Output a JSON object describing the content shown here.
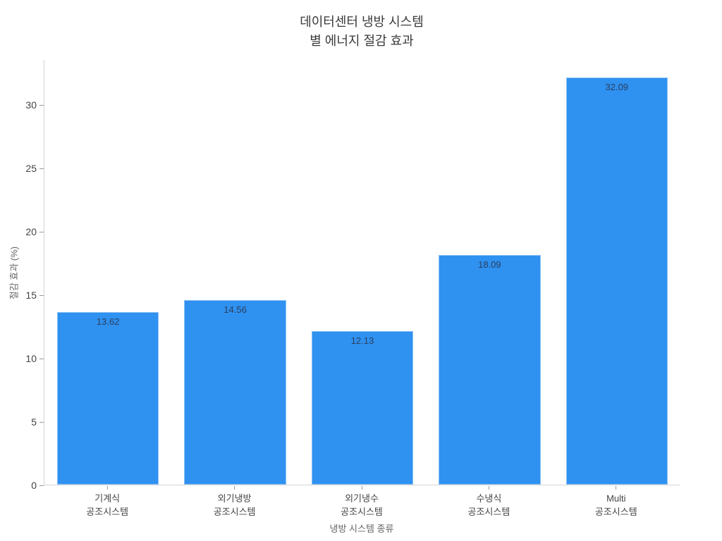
{
  "chart_data": {
    "type": "bar",
    "title_lines": [
      "데이터센터 냉방 시스템",
      "별 에너지 절감 효과"
    ],
    "xlabel": "냉방 시스템 종류",
    "ylabel": "절감 효과 (%)",
    "categories": [
      [
        "기계식",
        "공조시스템"
      ],
      [
        "외기냉방",
        "공조시스템"
      ],
      [
        "외기냉수",
        "공조시스템"
      ],
      [
        "수냉식",
        "공조시스템"
      ],
      [
        "Multi",
        "공조시스템"
      ]
    ],
    "values": [
      13.62,
      14.56,
      12.13,
      18.09,
      32.09
    ],
    "value_labels": [
      "13.62",
      "14.56",
      "12.13",
      "18.09",
      "32.09"
    ],
    "yticks": [
      0,
      5,
      10,
      15,
      20,
      25,
      30
    ],
    "ylim": [
      0,
      33.56
    ],
    "grid": false,
    "legend_position": "none",
    "colors": {
      "bar_fill": "#2f91f0",
      "bar_border": "#8ec2f5",
      "value_label": "#2a3f5f",
      "axis_line": "#d4d4d4",
      "tick_mark": "#9a9a9a",
      "tick_label": "#444444",
      "axis_title": "#666666",
      "title": "#3a3a3a",
      "background": "#ffffff"
    }
  }
}
